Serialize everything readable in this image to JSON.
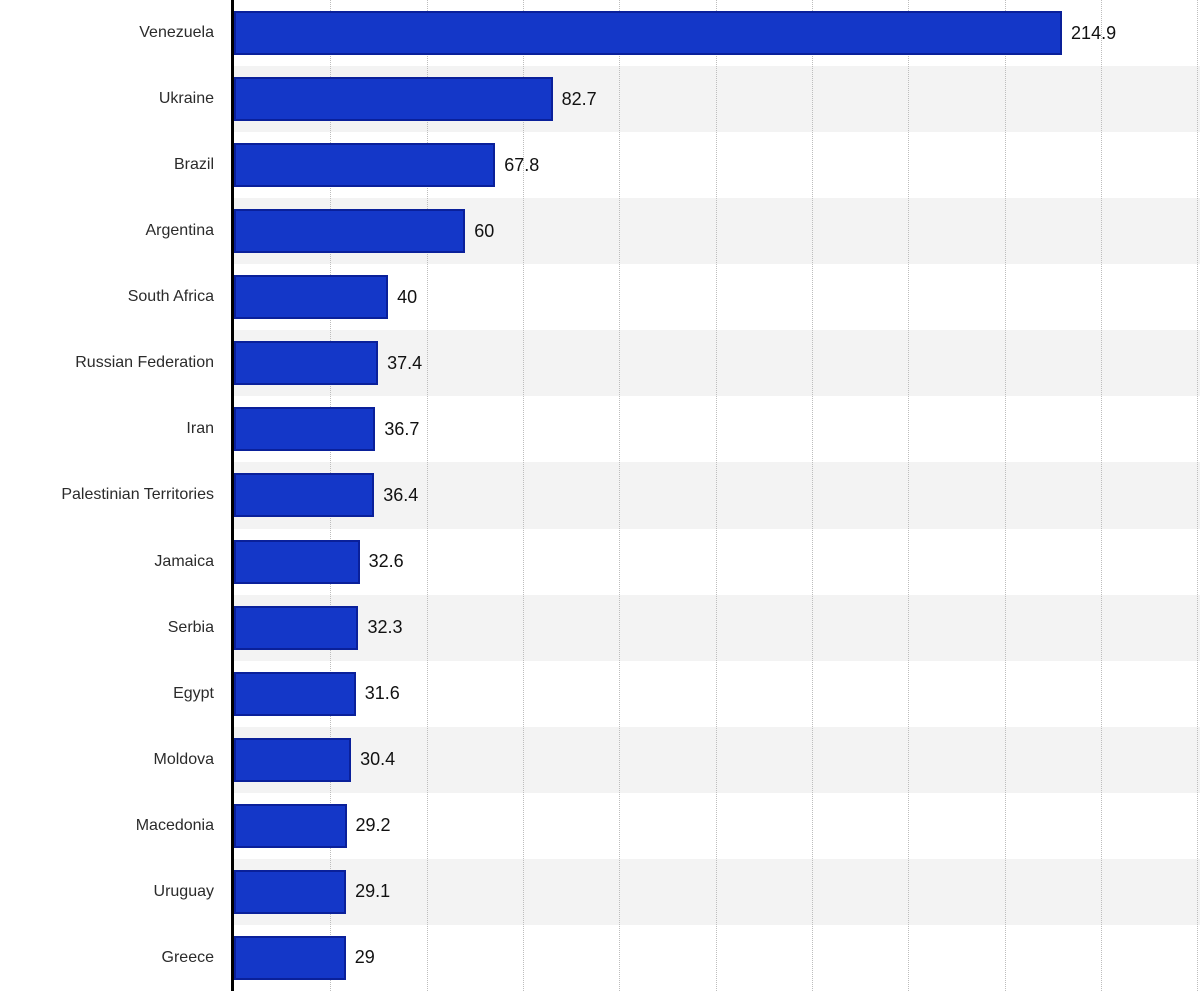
{
  "chart_data": {
    "type": "bar",
    "orientation": "horizontal",
    "categories": [
      "Venezuela",
      "Ukraine",
      "Brazil",
      "Argentina",
      "South Africa",
      "Russian Federation",
      "Iran",
      "Palestinian Territories",
      "Jamaica",
      "Serbia",
      "Egypt",
      "Moldova",
      "Macedonia",
      "Uruguay",
      "Greece"
    ],
    "values": [
      214.9,
      82.7,
      67.8,
      60,
      40,
      37.4,
      36.7,
      36.4,
      32.6,
      32.3,
      31.6,
      30.4,
      29.2,
      29.1,
      29
    ],
    "value_labels": [
      "214.9",
      "82.7",
      "67.8",
      "60",
      "40",
      "37.4",
      "36.7",
      "36.4",
      "32.6",
      "32.3",
      "31.6",
      "30.4",
      "29.2",
      "29.1",
      "29"
    ],
    "xlim": [
      0,
      250.7
    ],
    "gridline_step": 25,
    "grid": "vertical-dotted",
    "legend": "none",
    "row_stripes": "alternating, odd rows shaded"
  },
  "colors": {
    "bar_fill": "#1437c8",
    "bar_border": "#0a209a",
    "stripe": "#f3f3f3",
    "gridline": "#bdbdbd",
    "axis": "#000000",
    "label_text": "#2b2b2b",
    "value_text": "#111111",
    "background": "#ffffff"
  }
}
